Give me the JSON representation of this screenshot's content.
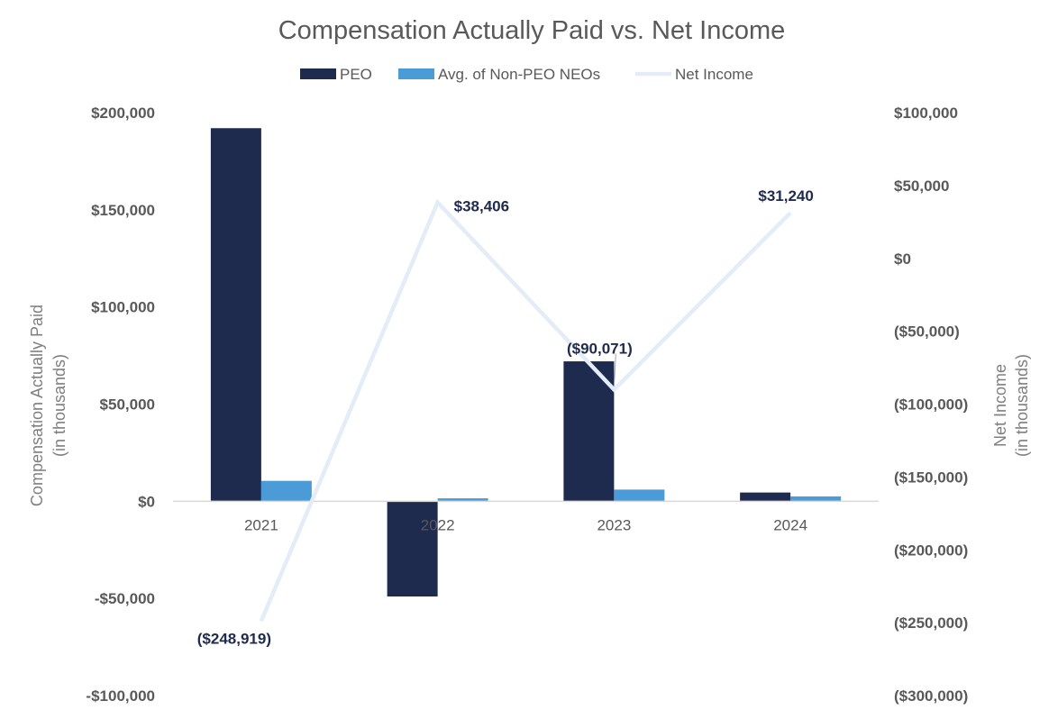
{
  "chart_data": {
    "type": "bar",
    "title": "Compensation Actually Paid vs. Net Income",
    "categories": [
      "2021",
      "2022",
      "2023",
      "2024"
    ],
    "series": [
      {
        "name": "PEO",
        "type": "bar",
        "axis": "left",
        "color": "#1f2a4f",
        "values": [
          192000,
          -49000,
          72000,
          4500
        ]
      },
      {
        "name": "Avg. of Non-PEO NEOs",
        "type": "bar",
        "axis": "left",
        "color": "#4a9bd6",
        "values": [
          10500,
          1500,
          6000,
          2500
        ]
      },
      {
        "name": "Net Income",
        "type": "line",
        "axis": "right",
        "color": "#e4ecf7",
        "values": [
          -248919,
          38406,
          -90071,
          31240
        ],
        "labels": [
          "($248,919)",
          "$38,406",
          "($90,071)",
          "$31,240"
        ]
      }
    ],
    "y_left": {
      "label_line1": "Compensation Actually Paid",
      "label_line2": "(in thousands)",
      "range": [
        -100000,
        200000
      ],
      "ticks": [
        200000,
        150000,
        100000,
        50000,
        0,
        -50000,
        -100000
      ],
      "tick_labels": [
        "$200,000",
        "$150,000",
        "$100,000",
        "$50,000",
        "$0",
        "-$50,000",
        "-$100,000"
      ]
    },
    "y_right": {
      "label_line1": "Net Income",
      "label_line2": "(in thousands)",
      "range": [
        -300000,
        100000
      ],
      "ticks": [
        100000,
        50000,
        0,
        -50000,
        -100000,
        -150000,
        -200000,
        -250000,
        -300000
      ],
      "tick_labels": [
        "$100,000",
        "$50,000",
        "$0",
        "($50,000)",
        "($100,000)",
        "($150,000)",
        "($200,000)",
        "($250,000)",
        "($300,000)"
      ]
    },
    "legend_position": "top-center",
    "grid": false
  }
}
